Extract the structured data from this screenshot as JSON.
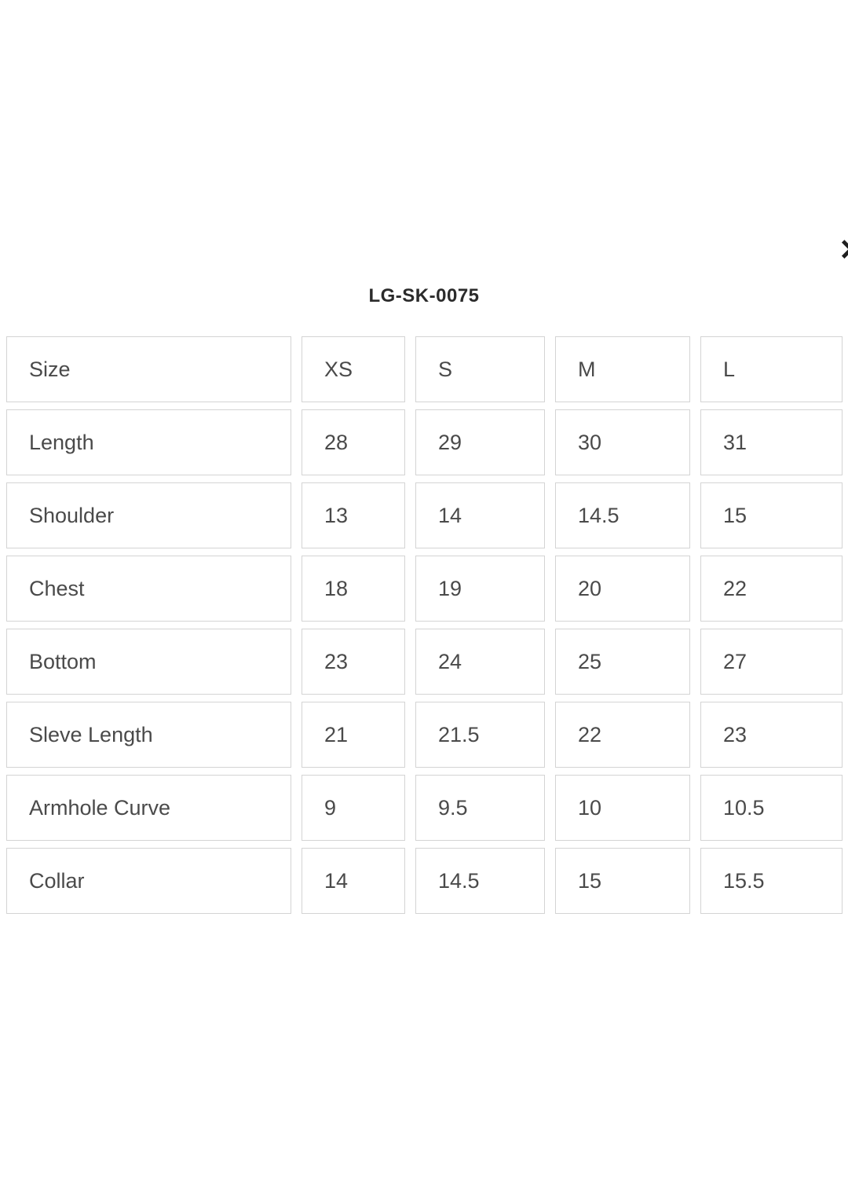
{
  "modal": {
    "title": "LG-SK-0075",
    "close_icon": "✕"
  },
  "size_chart": {
    "header": {
      "label": "Size",
      "sizes": [
        "XS",
        "S",
        "M",
        "L"
      ]
    },
    "rows": [
      {
        "label": "Length",
        "values": [
          "28",
          "29",
          "30",
          "31"
        ]
      },
      {
        "label": "Shoulder",
        "values": [
          "13",
          "14",
          "14.5",
          "15"
        ]
      },
      {
        "label": "Chest",
        "values": [
          "18",
          "19",
          "20",
          "22"
        ]
      },
      {
        "label": "Bottom",
        "values": [
          "23",
          "24",
          "25",
          "27"
        ]
      },
      {
        "label": "Sleve Length",
        "values": [
          "21",
          "21.5",
          "22",
          "23"
        ]
      },
      {
        "label": "Armhole Curve",
        "values": [
          "9",
          "9.5",
          "10",
          "10.5"
        ]
      },
      {
        "label": "Collar",
        "values": [
          "14",
          "14.5",
          "15",
          "15.5"
        ]
      }
    ]
  },
  "colors": {
    "background": "#ffffff",
    "text": "#4a4a4a",
    "title": "#2b2b2b",
    "border": "#d4d4d4"
  }
}
